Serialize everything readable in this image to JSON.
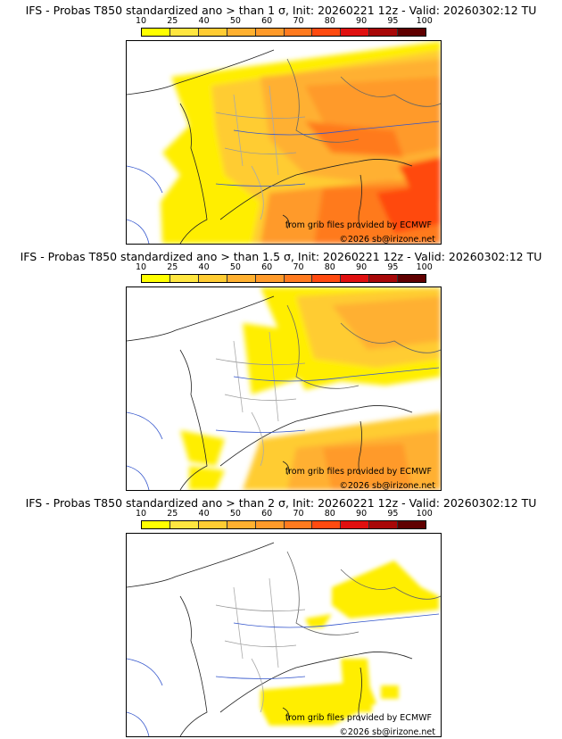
{
  "colorbar": {
    "labels": [
      "10",
      "25",
      "40",
      "50",
      "60",
      "70",
      "80",
      "90",
      "95",
      "100"
    ],
    "colors": [
      "#ffff00",
      "#ffe640",
      "#ffcc33",
      "#ffb030",
      "#ff9a2a",
      "#ff7a1f",
      "#ff4a10",
      "#e01010",
      "#a80808",
      "#600000"
    ]
  },
  "credits": {
    "source": "from grib files provided by ECMWF",
    "copyright": "©2026 sb@irizone.net"
  },
  "panels": [
    {
      "title": "IFS - Probas T850  standardized ano > than 1 σ, Init: 20260221 12z - Valid: 20260302:12 TU"
    },
    {
      "title": "IFS - Probas T850  standardized ano > than 1.5 σ, Init: 20260221 12z - Valid: 20260302:12 TU"
    },
    {
      "title": "IFS - Probas T850  standardized ano > than 2 σ, Init: 20260221 12z - Valid: 20260302:12 TU"
    }
  ]
}
